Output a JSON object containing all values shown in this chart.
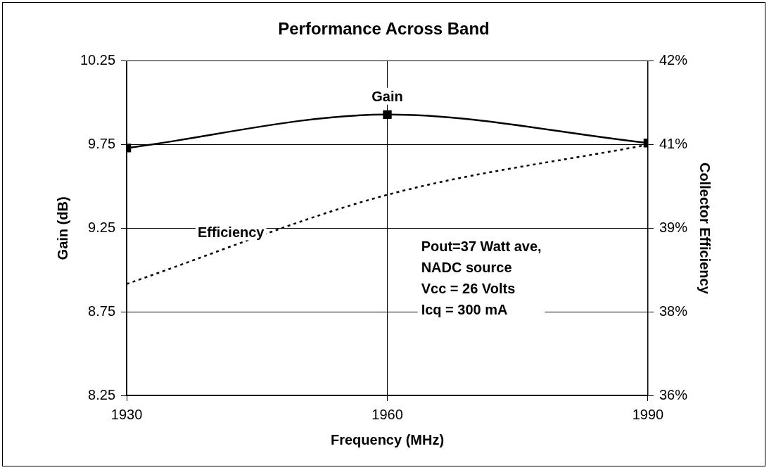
{
  "chart_data": {
    "type": "line",
    "title": "Performance Across Band",
    "xlabel": "Frequency (MHz)",
    "ylabel": "Gain (dB)",
    "y2label": "Collector Efficiency",
    "x": [
      1930,
      1960,
      1990
    ],
    "series": [
      {
        "name": "Gain",
        "color": "#000000",
        "values": [
          9.73,
          9.93,
          9.76
        ],
        "marker": "square",
        "line_style": "solid"
      },
      {
        "name": "Efficiency",
        "color": "#000000",
        "values": [
          38.0,
          39.6,
          40.5
        ],
        "axis": "y2",
        "marker": "none",
        "line_style": "dotted"
      }
    ],
    "xlim": [
      1930,
      1990
    ],
    "xticks": [
      1930,
      1960,
      1990
    ],
    "ylim": [
      8.25,
      10.25
    ],
    "yticks": [
      8.25,
      8.75,
      9.25,
      9.75,
      10.25
    ],
    "y2lim": [
      36,
      42
    ],
    "y2ticks": [
      {
        "value": 36,
        "label": "36%"
      },
      {
        "value": 37.5,
        "label": "38%"
      },
      {
        "value": 39,
        "label": "39%"
      },
      {
        "value": 40.5,
        "label": "41%"
      },
      {
        "value": 42,
        "label": "42%"
      }
    ],
    "grid": true,
    "legend": false,
    "annotations": [
      "Pout=37 Watt ave,\nNADC source\nVcc = 26 Volts\nIcq = 300 mA"
    ]
  }
}
